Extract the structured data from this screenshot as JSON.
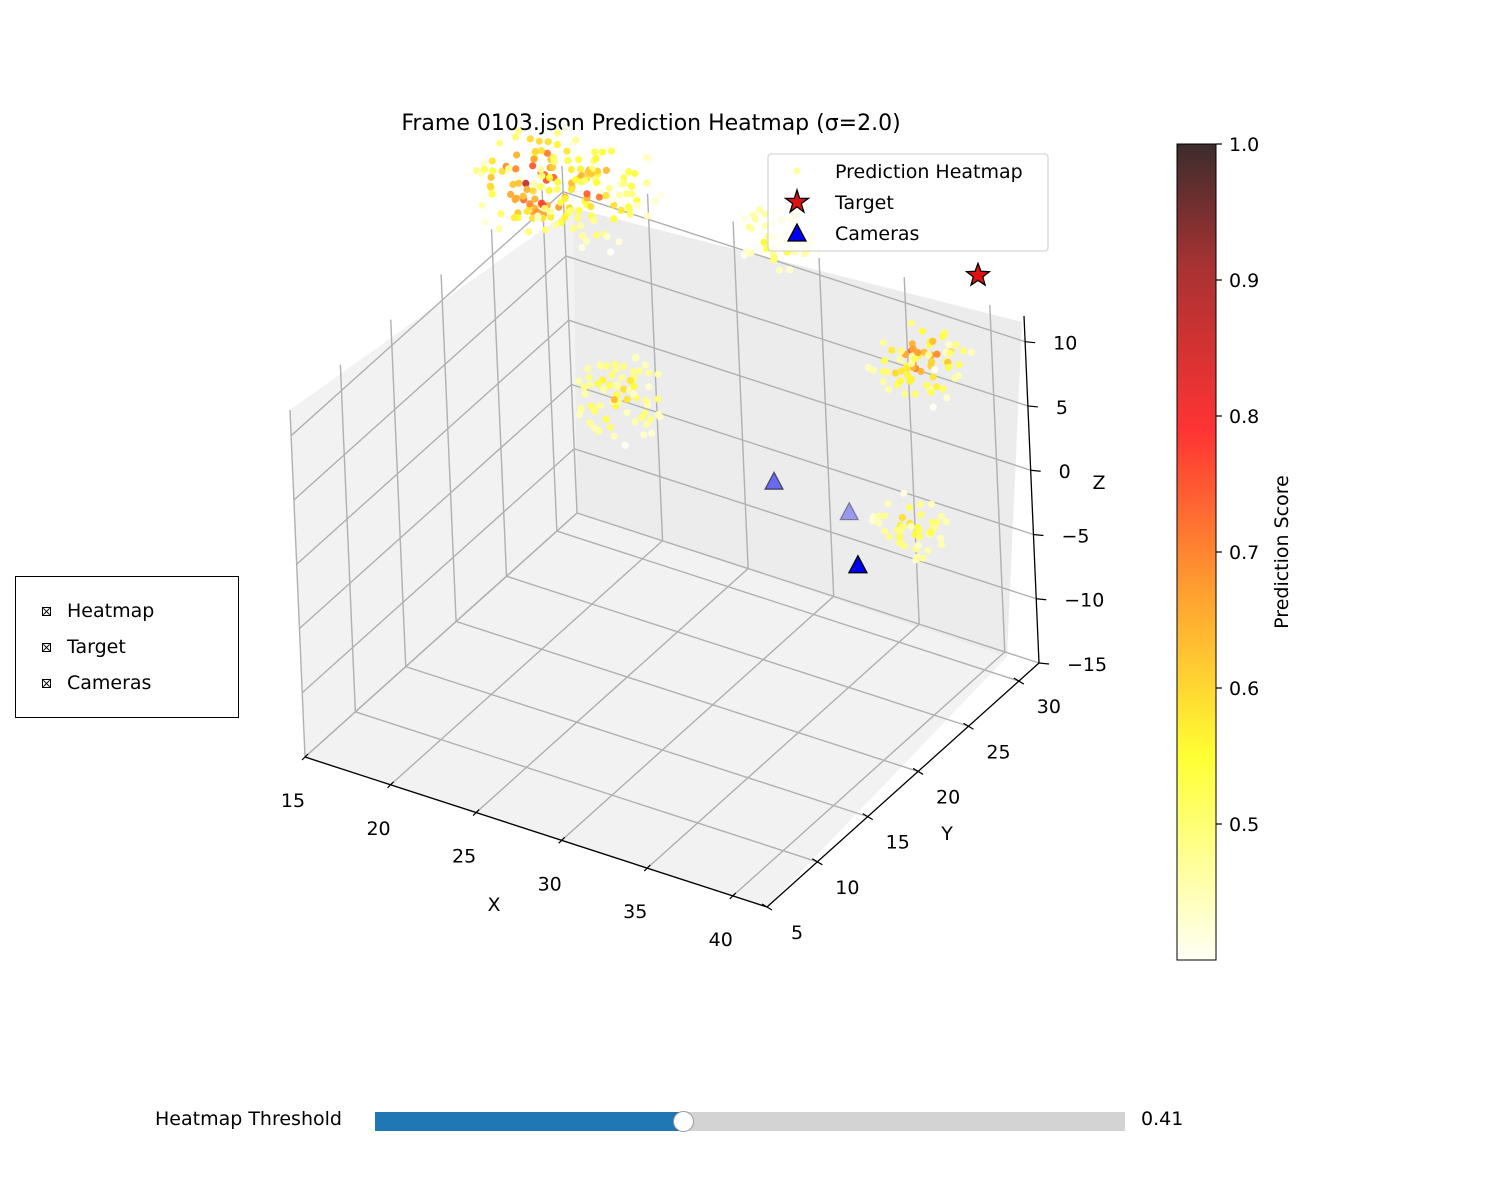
{
  "chart_data": {
    "type": "scatter",
    "title": "Frame 0103.json Prediction Heatmap (σ=2.0)",
    "xlabel": "X",
    "ylabel": "Y",
    "zlabel": "Z",
    "xlim": [
      15,
      42
    ],
    "ylim": [
      5,
      32
    ],
    "zlim": [
      -15,
      12
    ],
    "xticks": [
      "15",
      "20",
      "25",
      "30",
      "35",
      "40"
    ],
    "yticks": [
      "5",
      "10",
      "15",
      "20",
      "25",
      "30"
    ],
    "zticks": [
      "−15",
      "−10",
      "−5",
      "0",
      "5",
      "10"
    ],
    "grid": true,
    "legend": {
      "placement": "top-right",
      "entries": [
        "Prediction Heatmap",
        "Target",
        "Cameras"
      ]
    },
    "colorbar": {
      "label": "Prediction Score",
      "colormap": "hot_r",
      "range": [
        0.4,
        1.0
      ],
      "ticks": [
        "0.5",
        "0.6",
        "0.7",
        "0.8",
        "0.9",
        "1.0"
      ]
    },
    "series": [
      {
        "name": "Prediction Heatmap",
        "kind": "heatmap-clusters",
        "clusters": [
          {
            "x": 16,
            "y": 28,
            "z": 14,
            "peak": 1.0,
            "size": "large"
          },
          {
            "x": 18,
            "y": 30,
            "z": 13,
            "peak": 0.8,
            "size": "large"
          },
          {
            "x": 24,
            "y": 22,
            "z": 5,
            "peak": 0.72,
            "size": "medium"
          },
          {
            "x": 29,
            "y": 30,
            "z": 14,
            "peak": 0.72,
            "size": "small"
          },
          {
            "x": 37,
            "y": 30,
            "z": 8,
            "peak": 0.85,
            "size": "medium"
          },
          {
            "x": 39,
            "y": 25,
            "z": -1,
            "peak": 0.7,
            "size": "small"
          }
        ]
      },
      {
        "name": "Target",
        "points": [
          {
            "x": 40,
            "y": 31,
            "z": 15
          }
        ]
      },
      {
        "name": "Cameras",
        "points": [
          {
            "x": 28,
            "y": 30,
            "z": -5.5
          },
          {
            "x": 33,
            "y": 29,
            "z": -5
          },
          {
            "x": 34,
            "y": 28,
            "z": -8
          }
        ]
      }
    ]
  },
  "controls": {
    "checkboxes": [
      {
        "label": "Heatmap",
        "checked": true
      },
      {
        "label": "Target",
        "checked": true
      },
      {
        "label": "Cameras",
        "checked": true
      }
    ],
    "slider": {
      "label": "Heatmap Threshold",
      "value_text": "0.41",
      "fraction": 0.41,
      "fill_color": "#1f77b4"
    }
  }
}
